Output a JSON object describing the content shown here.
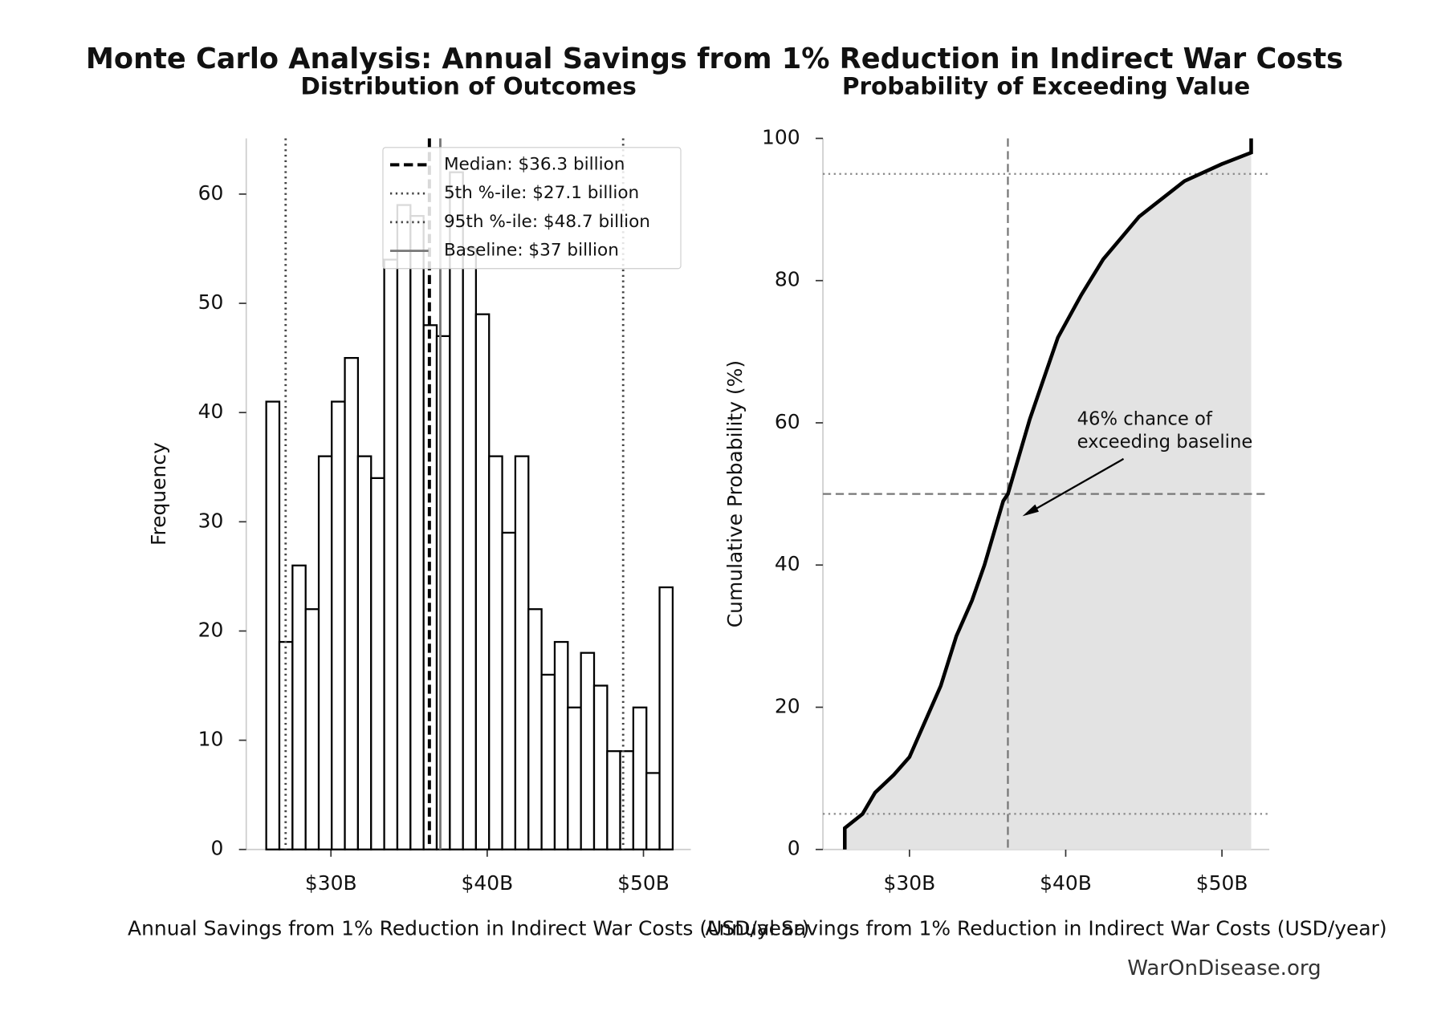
{
  "title": "Monte Carlo Analysis: Annual Savings from 1% Reduction in Indirect War Costs",
  "footer": "WarOnDisease.org",
  "chart_data": [
    {
      "type": "histogram",
      "title": "Distribution of Outcomes",
      "x_label": "Annual Savings from 1% Reduction in Indirect War Costs (USD/year)",
      "y_label": "Frequency",
      "bins": [
        25.86,
        26.7,
        27.54,
        28.38,
        29.22,
        30.05,
        30.89,
        31.73,
        32.57,
        33.41,
        34.25,
        35.09,
        35.93,
        36.77,
        37.61,
        38.45,
        39.28,
        40.12,
        40.96,
        41.8,
        42.64,
        43.48,
        44.32,
        45.16,
        46.0,
        46.84,
        47.68,
        48.51,
        49.35,
        50.19,
        51.03,
        51.87
      ],
      "counts": [
        41,
        19,
        26,
        22,
        36,
        41,
        45,
        36,
        34,
        54,
        59,
        58,
        48,
        47,
        62,
        55,
        49,
        36,
        29,
        36,
        22,
        16,
        19,
        13,
        18,
        15,
        9,
        9,
        13,
        7,
        24
      ],
      "color": "#ffffff",
      "edge_color": "#000000",
      "xlim": [
        24.58,
        53.03
      ],
      "ylim": [
        0,
        65.1
      ],
      "xticks": [
        {
          "value": 30,
          "label": "$30B"
        },
        {
          "value": 40,
          "label": "$40B"
        },
        {
          "value": 50,
          "label": "$50B"
        }
      ],
      "yticks": [
        0,
        10,
        20,
        30,
        40,
        50,
        60
      ],
      "markers": [
        {
          "name": "Median: $36.3 billion",
          "value": 36.3,
          "color": "#000000",
          "style": "dashed"
        },
        {
          "name": "5th %-ile: $27.1 billion",
          "value": 27.1,
          "color": "#444444",
          "style": "dotted"
        },
        {
          "name": "95th %-ile: $48.7 billion",
          "value": 48.7,
          "color": "#444444",
          "style": "dotted"
        },
        {
          "name": "Baseline: $37 billion",
          "value": 37,
          "color": "#777777",
          "style": "solid"
        }
      ],
      "legend": "upper right"
    },
    {
      "type": "line",
      "title": "Probability of Exceeding Value",
      "x_label": "Annual Savings from 1% Reduction in Indirect War Costs (USD/year)",
      "y_label": "Cumulative Probability (%)",
      "x": [
        25.86,
        25.86,
        27,
        27.8,
        29,
        30,
        31,
        32,
        33,
        34,
        34.8,
        36,
        36.3,
        37.7,
        39.5,
        40,
        41,
        42.4,
        44.7,
        47.6,
        50,
        51.87,
        51.87
      ],
      "y": [
        0,
        3,
        5,
        8,
        10.5,
        13,
        18,
        23,
        30,
        35,
        40,
        49,
        50,
        60.5,
        72,
        74,
        78,
        83,
        89,
        94,
        96.4,
        98,
        100
      ],
      "color": "#000000",
      "fill": "#e3e3e3",
      "xlim": [
        24.46,
        53.03
      ],
      "ylim": [
        0,
        100
      ],
      "xticks": [
        {
          "value": 30,
          "label": "$30B"
        },
        {
          "value": 40,
          "label": "$40B"
        },
        {
          "value": 50,
          "label": "$50B"
        }
      ],
      "yticks": [
        0,
        20,
        40,
        60,
        80,
        100
      ],
      "vlines": [
        36.3
      ],
      "hlines_dashed": [
        50
      ],
      "hlines_dotted": [
        5,
        95
      ],
      "annotation": [
        "46% chance of",
        "exceeding baseline"
      ]
    }
  ]
}
